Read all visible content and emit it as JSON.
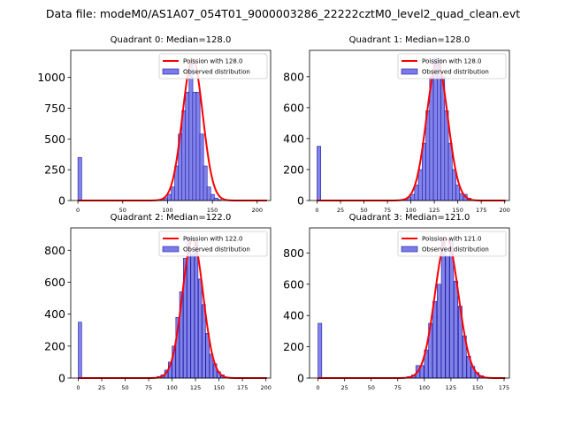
{
  "figure_title": "Data file: modeM0/AS1A07_054T01_9000003286_22222cztM0_level2_quad_clean.evt",
  "colors": {
    "bar_fill": "#7b7be8",
    "bar_edge": "#1a1aa6",
    "poisson": "#ff0000",
    "axis": "#000000"
  },
  "chart_data": [
    {
      "type": "bar",
      "title": "Quadrant 0: Median=128.0",
      "median": 128.0,
      "legend": [
        "Poission with 128.0",
        "Observed distribution"
      ],
      "legend_position": "top-right",
      "xlim": [
        -8,
        215
      ],
      "ylim": [
        0,
        1220
      ],
      "xticks": [
        0,
        50,
        100,
        150,
        200
      ],
      "yticks": [
        0,
        250,
        500,
        750,
        1000
      ],
      "bin_width": 4.2,
      "bins": [
        [
          0,
          350
        ],
        [
          88,
          5
        ],
        [
          92,
          12
        ],
        [
          96,
          22
        ],
        [
          100,
          50
        ],
        [
          104,
          110
        ],
        [
          108,
          280
        ],
        [
          112,
          540
        ],
        [
          116,
          730
        ],
        [
          120,
          880
        ],
        [
          124,
          1120
        ],
        [
          128,
          880
        ],
        [
          132,
          880
        ],
        [
          136,
          540
        ],
        [
          140,
          280
        ],
        [
          144,
          110
        ],
        [
          148,
          50
        ],
        [
          152,
          20
        ],
        [
          156,
          8
        ]
      ],
      "poisson_peak": 1150
    },
    {
      "type": "bar",
      "title": "Quadrant 1: Median=128.0",
      "median": 128.0,
      "legend": [
        "Poission with 128.0",
        "Observed distribution"
      ],
      "legend_position": "top-right",
      "xlim": [
        -8,
        205
      ],
      "ylim": [
        0,
        970
      ],
      "xticks": [
        0,
        25,
        50,
        75,
        100,
        125,
        150,
        175,
        200
      ],
      "yticks": [
        0,
        200,
        400,
        600,
        800
      ],
      "bin_width": 4.0,
      "bins": [
        [
          0,
          350
        ],
        [
          92,
          10
        ],
        [
          96,
          20
        ],
        [
          100,
          40
        ],
        [
          104,
          100
        ],
        [
          108,
          200
        ],
        [
          112,
          370
        ],
        [
          116,
          580
        ],
        [
          120,
          800
        ],
        [
          124,
          920
        ],
        [
          128,
          920
        ],
        [
          132,
          800
        ],
        [
          136,
          580
        ],
        [
          140,
          370
        ],
        [
          144,
          200
        ],
        [
          148,
          100
        ],
        [
          152,
          45
        ],
        [
          156,
          40
        ],
        [
          160,
          15
        ]
      ],
      "poisson_peak": 890
    },
    {
      "type": "bar",
      "title": "Quadrant 2: Median=122.0",
      "median": 122.0,
      "legend": [
        "Poission with 122.0",
        "Observed distribution"
      ],
      "legend_position": "top-right",
      "xlim": [
        -8,
        205
      ],
      "ylim": [
        0,
        940
      ],
      "xticks": [
        0,
        25,
        50,
        75,
        100,
        125,
        150,
        175,
        200
      ],
      "yticks": [
        0,
        200,
        400,
        600,
        800
      ],
      "bin_width": 3.6,
      "bins": [
        [
          0,
          350
        ],
        [
          84,
          10
        ],
        [
          88,
          20
        ],
        [
          92,
          50
        ],
        [
          96,
          100
        ],
        [
          100,
          200
        ],
        [
          104,
          380
        ],
        [
          108,
          540
        ],
        [
          112,
          750
        ],
        [
          116,
          880
        ],
        [
          120,
          780
        ],
        [
          124,
          850
        ],
        [
          128,
          620
        ],
        [
          132,
          460
        ],
        [
          136,
          280
        ],
        [
          140,
          150
        ],
        [
          144,
          90
        ],
        [
          148,
          40
        ],
        [
          152,
          20
        ]
      ],
      "poisson_peak": 870
    },
    {
      "type": "bar",
      "title": "Quadrant 3: Median=121.0",
      "median": 121.0,
      "legend": [
        "Poission with 121.0",
        "Observed distribution"
      ],
      "legend_position": "top-right",
      "xlim": [
        -8,
        180
      ],
      "ylim": [
        0,
        960
      ],
      "xticks": [
        0,
        25,
        50,
        75,
        100,
        125,
        150,
        175
      ],
      "yticks": [
        0,
        200,
        400,
        600,
        800
      ],
      "bin_width": 3.5,
      "bins": [
        [
          0,
          350
        ],
        [
          84,
          10
        ],
        [
          88,
          20
        ],
        [
          92,
          80
        ],
        [
          96,
          80
        ],
        [
          100,
          180
        ],
        [
          104,
          350
        ],
        [
          108,
          490
        ],
        [
          112,
          600
        ],
        [
          116,
          880
        ],
        [
          120,
          780
        ],
        [
          124,
          880
        ],
        [
          128,
          620
        ],
        [
          132,
          460
        ],
        [
          136,
          270
        ],
        [
          140,
          140
        ],
        [
          144,
          75
        ],
        [
          148,
          35
        ],
        [
          152,
          15
        ]
      ],
      "poisson_peak": 890
    }
  ]
}
